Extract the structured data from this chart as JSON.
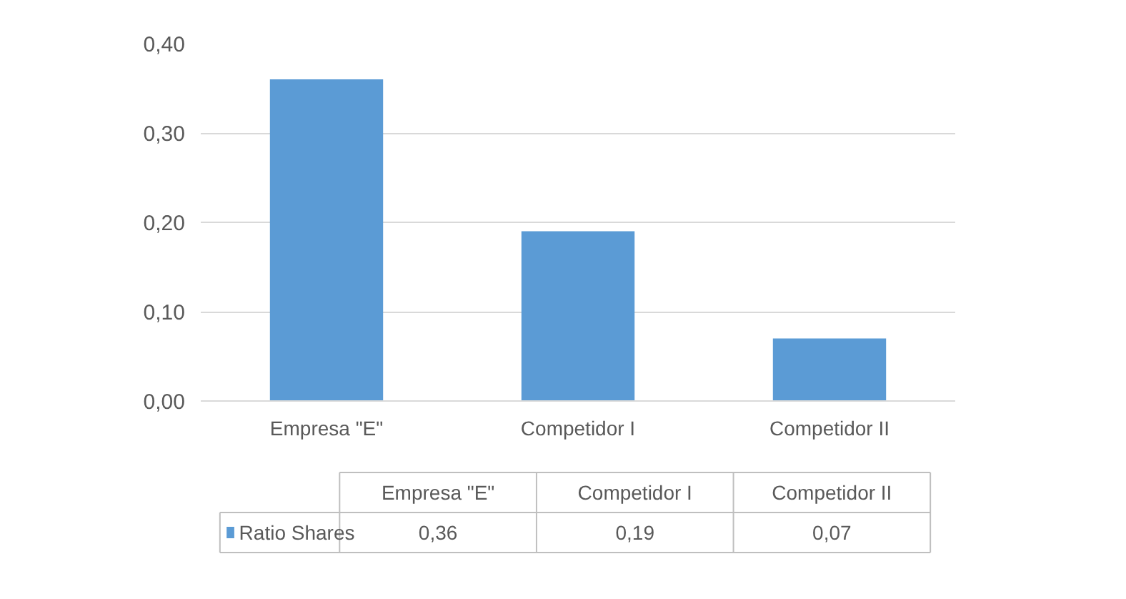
{
  "chart_data": {
    "type": "bar",
    "categories": [
      "Empresa \"E\"",
      "Competidor I",
      "Competidor II"
    ],
    "series": [
      {
        "name": "Ratio Shares",
        "color": "#5b9bd5",
        "values": [
          0.36,
          0.19,
          0.07
        ],
        "value_labels": [
          "0,36",
          "0,19",
          "0,07"
        ]
      }
    ],
    "ylim": [
      0,
      0.4
    ],
    "yticks": [
      {
        "value": 0,
        "label": "0,00"
      },
      {
        "value": 0.1,
        "label": "0,10"
      },
      {
        "value": 0.2,
        "label": "0,20"
      },
      {
        "value": 0.3,
        "label": "0,30"
      },
      {
        "value": 0.4,
        "label": "0,40"
      }
    ],
    "grid": "y",
    "legend": "bottom"
  }
}
